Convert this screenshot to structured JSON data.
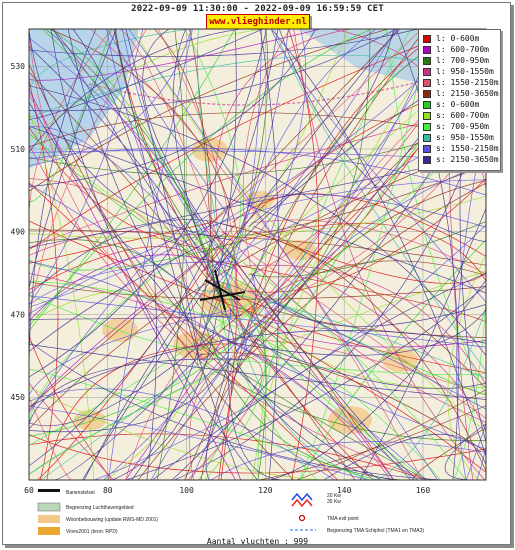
{
  "header": {
    "title": "2022-09-09 11:30:00 - 2022-09-09 16:59:59 CET",
    "site": "www.vlieghinder.nl"
  },
  "legend": [
    {
      "label": "l: 0-600m",
      "color": "#e00000"
    },
    {
      "label": "l: 600-700m",
      "color": "#b000c0"
    },
    {
      "label": "l: 700-950m",
      "color": "#2a7a10"
    },
    {
      "label": "l: 950-1550m",
      "color": "#cc3080"
    },
    {
      "label": "l: 1550-2150m",
      "color": "#e0506a"
    },
    {
      "label": "l: 2150-3650m",
      "color": "#8a2a10"
    },
    {
      "label": "s: 0-600m",
      "color": "#20d020"
    },
    {
      "label": "s: 600-700m",
      "color": "#90e020"
    },
    {
      "label": "s: 700-950m",
      "color": "#40f040"
    },
    {
      "label": "s: 950-1550m",
      "color": "#30c0a0"
    },
    {
      "label": "s: 1550-2150m",
      "color": "#5a50e0"
    },
    {
      "label": "s: 2150-3650m",
      "color": "#3a2a90"
    }
  ],
  "map_key": {
    "runway": "Banenstelsel",
    "airport": "Begrenzing Luchthavengebied",
    "housing": "Woonbebouwing (update RWS-MD 2001)",
    "vinex": "Vinex2001 (bron: RPD)",
    "kw20": "20 Kw",
    "kw35": "35 Kw",
    "tma_exit": "TMA exit point",
    "tma_border": "Begrenzing TMA Schiphol  (TMA1 en TMA3)"
  },
  "footer": {
    "text": "Aantal vluchten : 999"
  },
  "chart_data": {
    "type": "map",
    "x_ticks": [
      60,
      80,
      100,
      120,
      140,
      160
    ],
    "y_ticks": [
      450,
      470,
      490,
      510,
      530
    ],
    "xlim": [
      60,
      176
    ],
    "ylim": [
      430,
      539
    ],
    "grid": true,
    "legend_position": "top-right",
    "flight_count": 999
  }
}
